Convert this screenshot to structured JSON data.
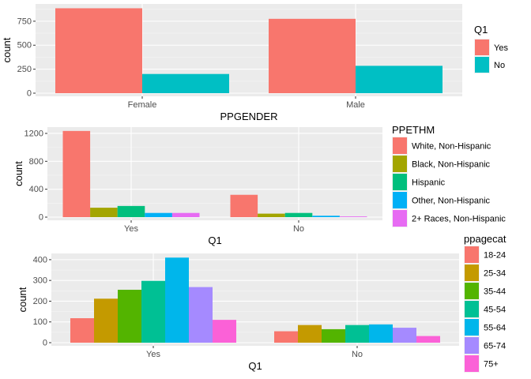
{
  "chart_data": [
    {
      "type": "bar",
      "categories": [
        "Female",
        "Male"
      ],
      "series": [
        {
          "name": "Yes",
          "color": "#F8766D",
          "values": [
            885,
            775
          ]
        },
        {
          "name": "No",
          "color": "#00BFC4",
          "values": [
            200,
            285
          ]
        }
      ],
      "xlabel": "PPGENDER",
      "ylabel": "count",
      "ylim": [
        0,
        930
      ],
      "yticks": [
        0,
        250,
        500,
        750
      ],
      "legend_title": "Q1",
      "legend_position": "right",
      "grid": true
    },
    {
      "type": "bar",
      "categories": [
        "Yes",
        "No"
      ],
      "series": [
        {
          "name": "White, Non-Hispanic",
          "color": "#F8766D",
          "values": [
            1235,
            320
          ]
        },
        {
          "name": "Black, Non-Hispanic",
          "color": "#A3A500",
          "values": [
            135,
            50
          ]
        },
        {
          "name": "Hispanic",
          "color": "#00BF7D",
          "values": [
            160,
            60
          ]
        },
        {
          "name": "Other, Non-Hispanic",
          "color": "#00B0F6",
          "values": [
            60,
            20
          ]
        },
        {
          "name": "2+ Races, Non-Hispanic",
          "color": "#E76BF3",
          "values": [
            60,
            10
          ]
        }
      ],
      "xlabel": "Q1",
      "ylabel": "count",
      "ylim": [
        0,
        1290
      ],
      "yticks": [
        0,
        400,
        800,
        1200
      ],
      "legend_title": "PPETHM",
      "legend_position": "right",
      "grid": true
    },
    {
      "type": "bar",
      "categories": [
        "Yes",
        "No"
      ],
      "series": [
        {
          "name": "18-24",
          "color": "#F8766D",
          "values": [
            118,
            55
          ]
        },
        {
          "name": "25-34",
          "color": "#C49A00",
          "values": [
            212,
            85
          ]
        },
        {
          "name": "35-44",
          "color": "#53B400",
          "values": [
            255,
            65
          ]
        },
        {
          "name": "45-54",
          "color": "#00C094",
          "values": [
            298,
            85
          ]
        },
        {
          "name": "55-64",
          "color": "#00B6EB",
          "values": [
            410,
            88
          ]
        },
        {
          "name": "65-74",
          "color": "#A58AFF",
          "values": [
            268,
            72
          ]
        },
        {
          "name": "75+",
          "color": "#FB61D7",
          "values": [
            110,
            32
          ]
        }
      ],
      "xlabel": "Q1",
      "ylabel": "count",
      "ylim": [
        0,
        430
      ],
      "yticks": [
        0,
        100,
        200,
        300,
        400
      ],
      "legend_title": "ppagecat",
      "legend_position": "right",
      "grid": true
    }
  ]
}
